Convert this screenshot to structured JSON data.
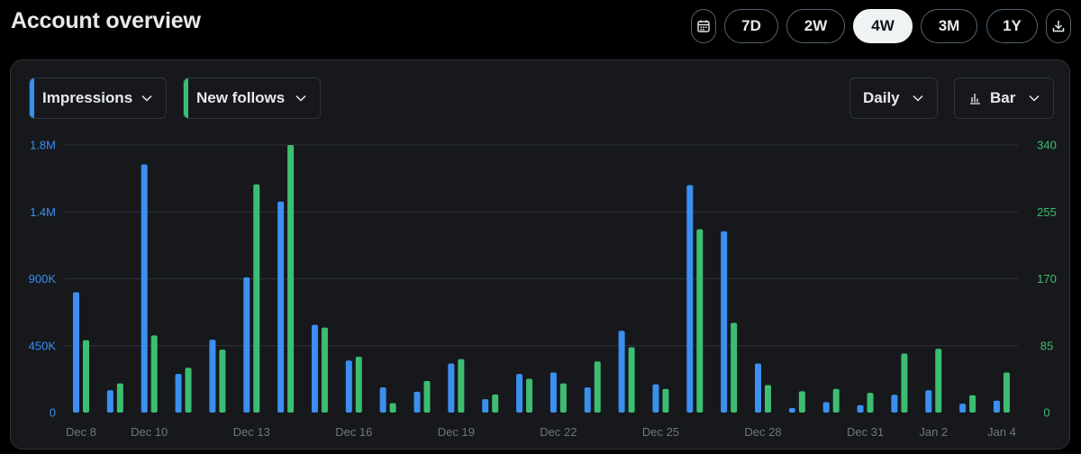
{
  "header": {
    "title": "Account overview"
  },
  "range": {
    "options": [
      "7D",
      "2W",
      "4W",
      "3M",
      "1Y"
    ],
    "selected": "4W",
    "calendar_icon": "calendar-icon",
    "download_icon": "download-icon"
  },
  "controls": {
    "metric_left": {
      "label": "Impressions",
      "color": "#3b8ff0"
    },
    "metric_right": {
      "label": "New follows",
      "color": "#3dbd72"
    },
    "granularity": "Daily",
    "chart_type": "Bar",
    "chart_type_icon": "bar-chart-icon",
    "chevron_icon": "chevron-down-icon"
  },
  "colors": {
    "impressions": "#3b8ff0",
    "follows": "#3dbd72",
    "grid": "#2f3336",
    "x_tick": "#71767b"
  },
  "chart_data": {
    "type": "bar",
    "title": "",
    "x": [
      "Dec 8",
      "Dec 9",
      "Dec 10",
      "Dec 11",
      "Dec 12",
      "Dec 13",
      "Dec 14",
      "Dec 15",
      "Dec 16",
      "Dec 17",
      "Dec 18",
      "Dec 19",
      "Dec 20",
      "Dec 21",
      "Dec 22",
      "Dec 23",
      "Dec 24",
      "Dec 25",
      "Dec 26",
      "Dec 27",
      "Dec 28",
      "Dec 29",
      "Dec 30",
      "Dec 31",
      "Jan 1",
      "Jan 2",
      "Jan 3",
      "Jan 4"
    ],
    "x_tick_labels": [
      "Dec 8",
      "Dec 10",
      "Dec 13",
      "Dec 16",
      "Dec 19",
      "Dec 22",
      "Dec 25",
      "Dec 28",
      "Dec 31",
      "Jan 2",
      "Jan 4"
    ],
    "series": [
      {
        "name": "Impressions",
        "axis": "left",
        "values": [
          810000,
          150000,
          1670000,
          260000,
          490000,
          910000,
          1420000,
          590000,
          350000,
          170000,
          140000,
          330000,
          90000,
          260000,
          270000,
          170000,
          550000,
          190000,
          1530000,
          1220000,
          330000,
          30000,
          70000,
          50000,
          120000,
          150000,
          60000,
          80000
        ]
      },
      {
        "name": "New follows",
        "axis": "right",
        "values": [
          92,
          37,
          98,
          57,
          80,
          290,
          340,
          108,
          71,
          12,
          40,
          68,
          23,
          43,
          37,
          65,
          83,
          30,
          233,
          114,
          35,
          27,
          30,
          25,
          75,
          81,
          22,
          51
        ]
      }
    ],
    "y_left": {
      "ticks": [
        "0",
        "450K",
        "900K",
        "1.4M",
        "1.8M"
      ],
      "tick_values": [
        0,
        450000,
        900000,
        1350000,
        1800000
      ],
      "range": [
        0,
        1800000
      ]
    },
    "y_right": {
      "ticks": [
        "0",
        "85",
        "170",
        "255",
        "340"
      ],
      "tick_values": [
        0,
        85,
        170,
        255,
        340
      ],
      "range": [
        0,
        340
      ]
    },
    "grid": true,
    "legend": "top-left"
  }
}
